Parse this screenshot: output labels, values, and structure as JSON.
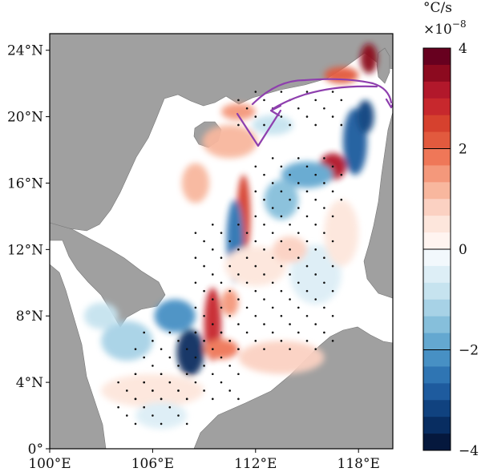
{
  "map": {
    "extent": {
      "lon": [
        100,
        120
      ],
      "lat": [
        0,
        25
      ]
    },
    "lon_ticks": [
      {
        "value": 100,
        "label": "100°E"
      },
      {
        "value": 106,
        "label": "106°E"
      },
      {
        "value": 112,
        "label": "112°E"
      },
      {
        "value": 118,
        "label": "118°E"
      }
    ],
    "lat_ticks": [
      {
        "value": 0,
        "label": "0°"
      },
      {
        "value": 4,
        "label": "4°N"
      },
      {
        "value": 8,
        "label": "8°N"
      },
      {
        "value": 12,
        "label": "12°N"
      },
      {
        "value": 16,
        "label": "16°N"
      },
      {
        "value": 20,
        "label": "20°N"
      },
      {
        "value": 24,
        "label": "24°N"
      }
    ],
    "colors": {
      "land": "#a0a0a0",
      "ocean_zero": "#ffffff",
      "arrow": "#8e3fae",
      "stipple": "#111111"
    }
  },
  "colorbar": {
    "unit_line1": "°C/s",
    "unit_line2_base": "×10",
    "unit_line2_exp": "−8",
    "range": [
      -4,
      4
    ],
    "tick_labels": [
      {
        "value": 4,
        "label": "4"
      },
      {
        "value": 2,
        "label": "2"
      },
      {
        "value": 0,
        "label": "0"
      },
      {
        "value": -2,
        "label": "−2"
      },
      {
        "value": -4,
        "label": "−4"
      }
    ],
    "levels": [
      "#67001f",
      "#8c0a1f",
      "#b2182b",
      "#c7282d",
      "#d6412e",
      "#e25a3e",
      "#ef7758",
      "#f4987b",
      "#f8b79e",
      "#fbd1c2",
      "#fde6dc",
      "#fff4f0",
      "#f2f8fc",
      "#ddeef6",
      "#c6e3ef",
      "#a7d2e6",
      "#86bfdb",
      "#64a8d0",
      "#4790c4",
      "#2f75b3",
      "#1e5b9e",
      "#10427f",
      "#082d61",
      "#05183d"
    ]
  }
}
